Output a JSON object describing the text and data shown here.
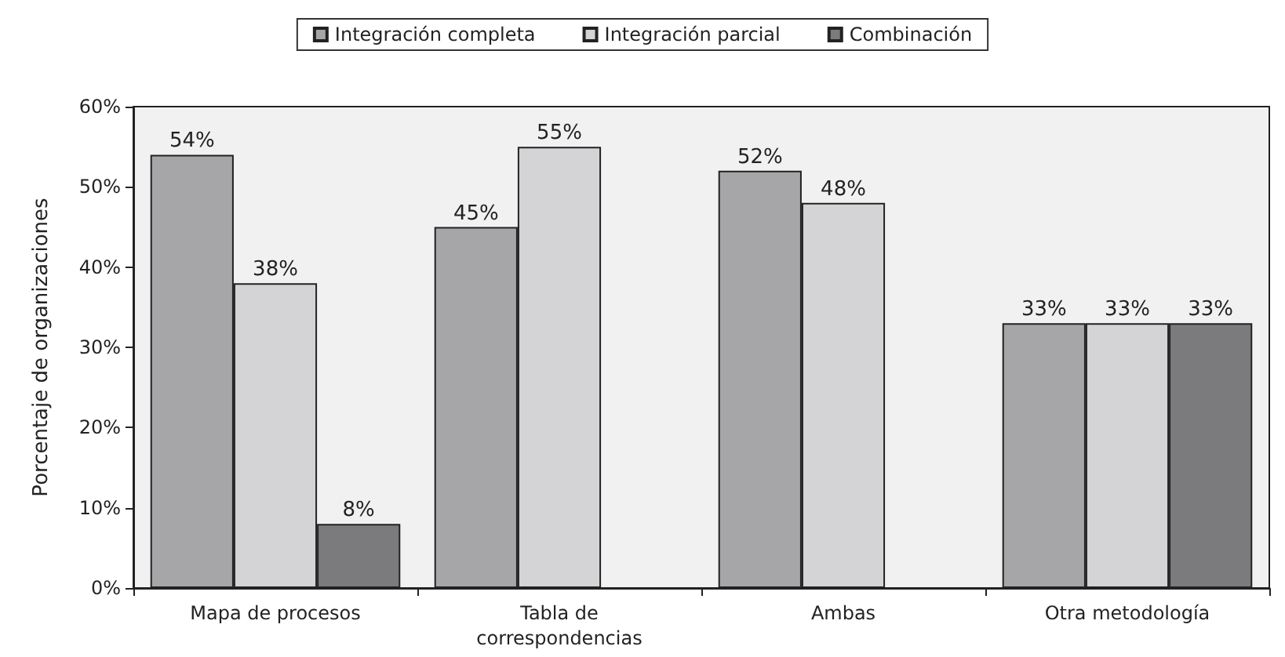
{
  "chart_data": {
    "type": "bar",
    "ylabel": "Porcentaje de organizaciones",
    "categories": [
      "Mapa de procesos",
      "Tabla de\ncorrespondencias",
      "Ambas",
      "Otra metodología"
    ],
    "series": [
      {
        "name": "Integración completa",
        "color": "#a6a6a8",
        "values": [
          54,
          45,
          52,
          33
        ],
        "value_labels": [
          "54%",
          "45%",
          "52%",
          "33%"
        ]
      },
      {
        "name": "Integración parcial",
        "color": "#d4d4d6",
        "values": [
          38,
          55,
          48,
          33
        ],
        "value_labels": [
          "38%",
          "55%",
          "48%",
          "33%"
        ]
      },
      {
        "name": "Combinación",
        "color": "#7b7b7d",
        "values": [
          8,
          null,
          null,
          33
        ],
        "value_labels": [
          "8%",
          null,
          null,
          "33%"
        ]
      }
    ],
    "ylim": [
      0,
      60
    ],
    "yticks": [
      {
        "value": 0,
        "label": "0%"
      },
      {
        "value": 10,
        "label": "10%"
      },
      {
        "value": 20,
        "label": "20%"
      },
      {
        "value": 30,
        "label": "30%"
      },
      {
        "value": 40,
        "label": "40%"
      },
      {
        "value": 50,
        "label": "50%"
      },
      {
        "value": 60,
        "label": "60%"
      }
    ],
    "grid": false,
    "legend": "top"
  }
}
